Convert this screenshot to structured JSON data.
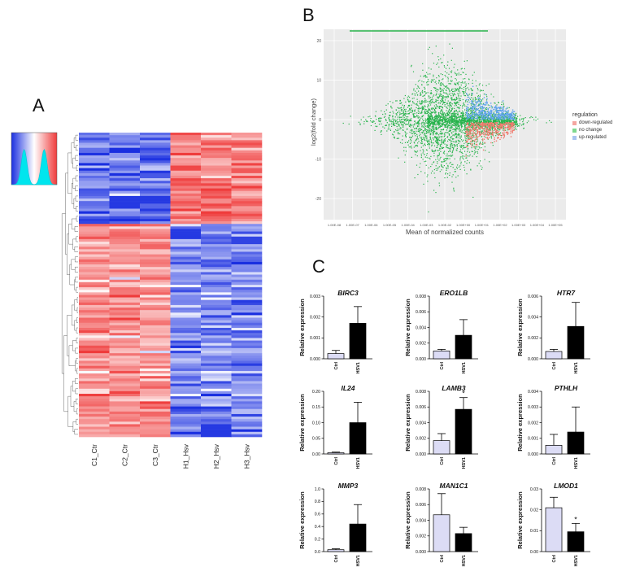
{
  "panels": {
    "a": "A",
    "b": "B",
    "c": "C"
  },
  "heatmap": {
    "columns": [
      "C1_Ctr",
      "C2_Ctr",
      "C3_Ctr",
      "H1_Hsv",
      "H2_Hsv",
      "H3_Hsv"
    ],
    "colors": {
      "low": "#1a2fe0",
      "mid": "#ffffff",
      "high": "#ef3b3b"
    },
    "key_colors": {
      "density": "#00e5ee",
      "line": "#00c8d6"
    }
  },
  "ma_plot": {
    "ylabel": "log2(fold change)",
    "xlabel": "Mean of normalized counts",
    "yticks": [
      "20",
      "10",
      "0",
      "-10",
      "-20"
    ],
    "xticks": [
      "1.00E-08",
      "1.00E-07",
      "1.00E-06",
      "1.00E-05",
      "1.00E-04",
      "1.00E-03",
      "1.00E-02",
      "1.00E+00",
      "1.00E+01",
      "1.00E+02",
      "1.00E+03",
      "1.00E+04",
      "1.00E+05"
    ],
    "legend": {
      "title": "regulation",
      "items": [
        {
          "label": "down-regulated",
          "color": "#f4a6a0"
        },
        {
          "label": "no change",
          "color": "#7fd88f"
        },
        {
          "label": "up-regulated",
          "color": "#a8c4f0"
        }
      ]
    },
    "colors": {
      "no_change": "#27b34b",
      "down": "#f0796c",
      "up": "#5fa2ee",
      "bg": "#ebebeb"
    }
  },
  "chart_data": [
    {
      "type": "bar",
      "title": "BIRC3",
      "ylabel": "Relative expression",
      "categories": [
        "Ctrl",
        "HSV1"
      ],
      "values": [
        0.00025,
        0.0017
      ],
      "errors": [
        0.00015,
        0.0008
      ],
      "ylim": [
        0,
        0.003
      ],
      "yticks": [
        "0.000",
        "0.001",
        "0.002",
        "0.003"
      ],
      "significance": []
    },
    {
      "type": "bar",
      "title": "ERO1LB",
      "ylabel": "Relative expression",
      "categories": [
        "Ctrl",
        "HSV1"
      ],
      "values": [
        0.001,
        0.003
      ],
      "errors": [
        0.0002,
        0.002
      ],
      "ylim": [
        0,
        0.008
      ],
      "yticks": [
        "0.000",
        "0.002",
        "0.004",
        "0.006",
        "0.008"
      ],
      "significance": []
    },
    {
      "type": "bar",
      "title": "HTR7",
      "ylabel": "Relative expression",
      "categories": [
        "Ctrl",
        "HSV1"
      ],
      "values": [
        0.0007,
        0.0031
      ],
      "errors": [
        0.0002,
        0.0023
      ],
      "ylim": [
        0,
        0.006
      ],
      "yticks": [
        "0.000",
        "0.002",
        "0.004",
        "0.006"
      ],
      "significance": []
    },
    {
      "type": "bar",
      "title": "IL24",
      "ylabel": "Relative expression",
      "categories": [
        "Ctrl",
        "HSV1"
      ],
      "values": [
        0.004,
        0.1
      ],
      "errors": [
        0.002,
        0.065
      ],
      "ylim": [
        0,
        0.2
      ],
      "yticks": [
        "0.00",
        "0.05",
        "0.10",
        "0.15",
        "0.20"
      ],
      "significance": []
    },
    {
      "type": "bar",
      "title": "LAMB3",
      "ylabel": "Relative expression",
      "categories": [
        "Ctrl",
        "HSV1"
      ],
      "values": [
        0.0017,
        0.0057
      ],
      "errors": [
        0.0009,
        0.0015
      ],
      "ylim": [
        0,
        0.008
      ],
      "yticks": [
        "0.000",
        "0.002",
        "0.004",
        "0.006",
        "0.008"
      ],
      "significance": [
        "",
        "*"
      ]
    },
    {
      "type": "bar",
      "title": "PTHLH",
      "ylabel": "Relative expression",
      "categories": [
        "Ctrl",
        "HSV1"
      ],
      "values": [
        0.00055,
        0.0014
      ],
      "errors": [
        0.0007,
        0.0016
      ],
      "ylim": [
        0,
        0.004
      ],
      "yticks": [
        "0.000",
        "0.001",
        "0.002",
        "0.003",
        "0.004"
      ],
      "significance": []
    },
    {
      "type": "bar",
      "title": "MMP3",
      "ylabel": "Relative expression",
      "categories": [
        "Ctrl",
        "HSV1"
      ],
      "values": [
        0.03,
        0.44
      ],
      "errors": [
        0.015,
        0.31
      ],
      "ylim": [
        0,
        1.0
      ],
      "yticks": [
        "0.0",
        "0.2",
        "0.4",
        "0.6",
        "0.8",
        "1.0"
      ],
      "significance": []
    },
    {
      "type": "bar",
      "title": "MAN1C1",
      "ylabel": "Relative expression",
      "categories": [
        "Ctrl",
        "HSV1"
      ],
      "values": [
        0.0047,
        0.0023
      ],
      "errors": [
        0.0027,
        0.0008
      ],
      "ylim": [
        0,
        0.008
      ],
      "yticks": [
        "0.000",
        "0.002",
        "0.004",
        "0.006",
        "0.008"
      ],
      "significance": []
    },
    {
      "type": "bar",
      "title": "LMOD1",
      "ylabel": "Relative expression",
      "categories": [
        "Ctrl",
        "HSV1"
      ],
      "values": [
        0.021,
        0.0095
      ],
      "errors": [
        0.005,
        0.004
      ],
      "ylim": [
        0,
        0.03
      ],
      "yticks": [
        "0.00",
        "0.01",
        "0.02",
        "0.03"
      ],
      "significance": [
        "",
        "*"
      ]
    }
  ],
  "bar_colors": {
    "ctrl": "#dcdcf5",
    "hsv1": "#000000"
  }
}
